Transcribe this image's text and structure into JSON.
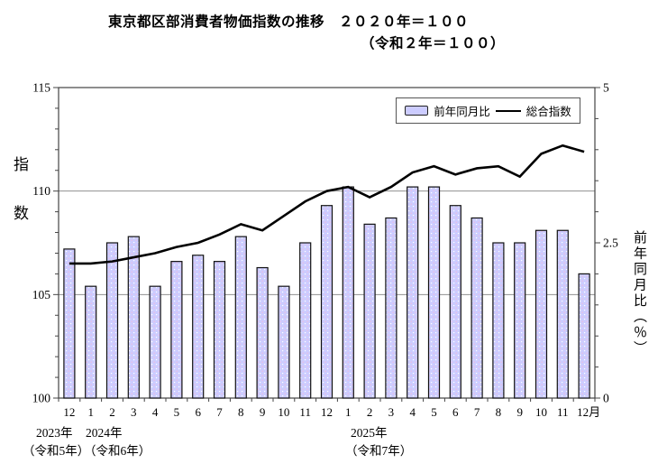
{
  "title": {
    "line1": "東京都区部消費者物価指数の推移　２０２０年＝１００",
    "line2": "（令和２年＝１００）"
  },
  "legend": {
    "bar_label": "前年同月比",
    "line_label": "総合指数"
  },
  "axis_titles": {
    "left": "指数",
    "right": "前年同月比（％）"
  },
  "year_labels": {
    "y2023": "2023年",
    "y2023_wareki": "（令和5年）",
    "y2024": "2024年",
    "y2024_wareki": "（令和6年）",
    "y2025": "2025年",
    "y2025_wareki": "（令和7年）"
  },
  "colors": {
    "bar_fill": "#CCCCFF",
    "bar_border": "#111111",
    "line": "#000000",
    "grid": "#909090",
    "frame": "#444444"
  },
  "chart_data": {
    "type": "bar",
    "title": "東京都区部消費者物価指数の推移　２０２０年＝１００（令和２年＝１００）",
    "categories": [
      "12",
      "1",
      "2",
      "3",
      "4",
      "5",
      "6",
      "7",
      "8",
      "9",
      "10",
      "11",
      "12",
      "1",
      "2",
      "3",
      "4",
      "5",
      "6",
      "7",
      "8",
      "9",
      "10",
      "11",
      "12月"
    ],
    "series": [
      {
        "name": "前年同月比",
        "type": "bar",
        "axis": "right",
        "values": [
          2.4,
          1.8,
          2.5,
          2.6,
          1.8,
          2.2,
          2.3,
          2.2,
          2.6,
          2.1,
          1.8,
          2.5,
          3.1,
          3.4,
          2.8,
          2.9,
          3.4,
          3.4,
          3.1,
          2.9,
          2.5,
          2.5,
          2.7,
          2.7,
          2.0
        ]
      },
      {
        "name": "総合指数",
        "type": "line",
        "axis": "left",
        "values": [
          106.5,
          106.5,
          106.6,
          106.8,
          107.0,
          107.3,
          107.5,
          107.9,
          108.4,
          108.1,
          108.8,
          109.5,
          110.0,
          110.2,
          109.7,
          110.2,
          110.9,
          111.2,
          110.8,
          111.1,
          111.2,
          110.7,
          111.8,
          112.2,
          111.9
        ]
      }
    ],
    "left_axis": {
      "label": "指数",
      "min": 100,
      "max": 115,
      "tick_labels": [
        "100",
        "105",
        "110",
        "115"
      ],
      "tick_values": [
        100,
        105,
        110,
        115
      ],
      "minor_step": 1,
      "gridlines": [
        105,
        110
      ]
    },
    "right_axis": {
      "label": "前年同月比（％）",
      "min": 0,
      "max": 5,
      "tick_labels": [
        "0",
        "2.5",
        "5"
      ],
      "tick_values": [
        0,
        2.5,
        5
      ],
      "minor_step": 0.5
    },
    "legend_position": "top-right-inside",
    "grid": "horizontal-only"
  }
}
